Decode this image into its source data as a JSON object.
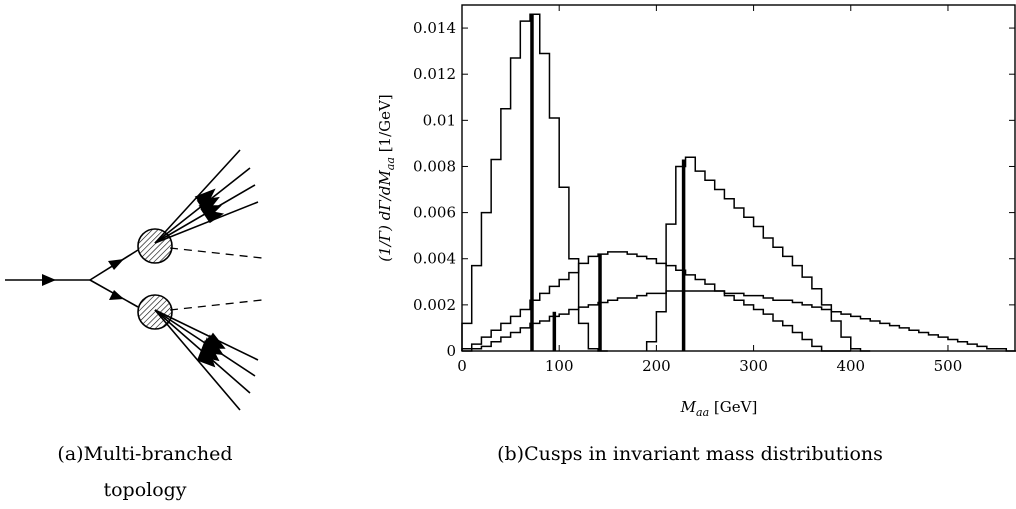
{
  "figure_a": {
    "caption_label": "(a)",
    "caption_line1": "Multi-branched",
    "caption_line2": "topology"
  },
  "figure_b": {
    "caption_label": "(b)",
    "caption_text": "Cusps in invariant mass distributions"
  },
  "chart_data": {
    "type": "histogram",
    "title": "",
    "xlabel": "M_aa [GeV]",
    "ylabel": "(1/Γ) dΓ/dM_aa [1/GeV]",
    "ylabel_unit": "[1/GeV]",
    "xlabel_var": "M",
    "xlabel_sub": "aa",
    "xlabel_unit": "[GeV]",
    "xlim": [
      0,
      570
    ],
    "ylim": [
      0,
      0.015
    ],
    "xticks": [
      0,
      100,
      200,
      300,
      400,
      500
    ],
    "yticks": [
      0,
      0.002,
      0.004,
      0.006,
      0.008,
      0.01,
      0.012,
      0.014
    ],
    "ytick_labels": [
      "0",
      "0.002",
      "0.004",
      "0.006",
      "0.008",
      "0.01",
      "0.012",
      "0.014"
    ],
    "bin_width": 10,
    "series": [
      {
        "x": [
          0,
          10,
          20,
          30,
          40,
          50,
          60,
          70,
          80,
          90,
          100,
          110,
          120,
          130,
          140
        ],
        "values": [
          0.0012,
          0.0037,
          0.006,
          0.0083,
          0.0105,
          0.0127,
          0.0143,
          0.0146,
          0.0129,
          0.0101,
          0.0071,
          0.004,
          0.0012,
          0.0001,
          0
        ]
      },
      {
        "x": [
          190,
          200,
          210,
          220,
          230,
          240,
          250,
          260,
          270,
          280,
          290,
          300,
          310,
          320,
          330,
          340,
          350,
          360,
          370,
          380,
          390,
          400,
          410
        ],
        "values": [
          0.0004,
          0.0017,
          0.0055,
          0.008,
          0.0084,
          0.0078,
          0.0074,
          0.007,
          0.0066,
          0.0062,
          0.0058,
          0.0054,
          0.0049,
          0.0045,
          0.0041,
          0.0037,
          0.0032,
          0.0027,
          0.002,
          0.0013,
          0.0006,
          0.0001,
          0
        ]
      },
      {
        "x": [
          0,
          10,
          20,
          30,
          40,
          50,
          60,
          70,
          80,
          90,
          100,
          110,
          120,
          130,
          140,
          150,
          160,
          170,
          180,
          190,
          200,
          210,
          220,
          230,
          240,
          250,
          260,
          270,
          280,
          290,
          300,
          310,
          320,
          330,
          340,
          350,
          360,
          370,
          380,
          390
        ],
        "values": [
          0.0001,
          0.0003,
          0.0006,
          0.0009,
          0.0012,
          0.0015,
          0.0018,
          0.0022,
          0.0025,
          0.0028,
          0.0031,
          0.0034,
          0.0038,
          0.0041,
          0.0042,
          0.0043,
          0.0043,
          0.0042,
          0.0041,
          0.004,
          0.0038,
          0.0037,
          0.0035,
          0.0033,
          0.0031,
          0.0029,
          0.0026,
          0.0024,
          0.0022,
          0.002,
          0.0018,
          0.0016,
          0.0013,
          0.0011,
          0.0008,
          0.0005,
          0.0002,
          0,
          0,
          0
        ]
      },
      {
        "x": [
          0,
          10,
          20,
          30,
          40,
          50,
          60,
          70,
          80,
          90,
          100,
          110,
          120,
          130,
          140,
          150,
          160,
          170,
          180,
          190,
          200,
          210,
          220,
          230,
          240,
          250,
          260,
          270,
          280,
          290,
          300,
          310,
          320,
          330,
          340,
          350,
          360,
          370,
          380,
          390,
          400,
          410,
          420,
          430,
          440,
          450,
          460,
          470,
          480,
          490,
          500,
          510,
          520,
          530,
          540,
          550,
          560
        ],
        "values": [
          0,
          0.0001,
          0.0002,
          0.0004,
          0.0006,
          0.0008,
          0.001,
          0.0012,
          0.0013,
          0.0015,
          0.0016,
          0.0018,
          0.0019,
          0.002,
          0.0021,
          0.0022,
          0.0023,
          0.0023,
          0.0024,
          0.0025,
          0.0025,
          0.0026,
          0.0026,
          0.0026,
          0.0026,
          0.0026,
          0.0026,
          0.0025,
          0.0025,
          0.0024,
          0.0024,
          0.0023,
          0.0022,
          0.0022,
          0.0021,
          0.002,
          0.0019,
          0.0018,
          0.0017,
          0.0016,
          0.0015,
          0.0014,
          0.0013,
          0.0012,
          0.0011,
          0.001,
          0.0009,
          0.0008,
          0.0007,
          0.0006,
          0.0005,
          0.0004,
          0.0003,
          0.0002,
          0.0001,
          0.0001,
          0
        ]
      }
    ],
    "cusp_lines": [
      {
        "x": 72,
        "y": 0.0146
      },
      {
        "x": 95,
        "y": 0.0017
      },
      {
        "x": 142,
        "y": 0.0042
      },
      {
        "x": 228,
        "y": 0.0083
      }
    ]
  }
}
